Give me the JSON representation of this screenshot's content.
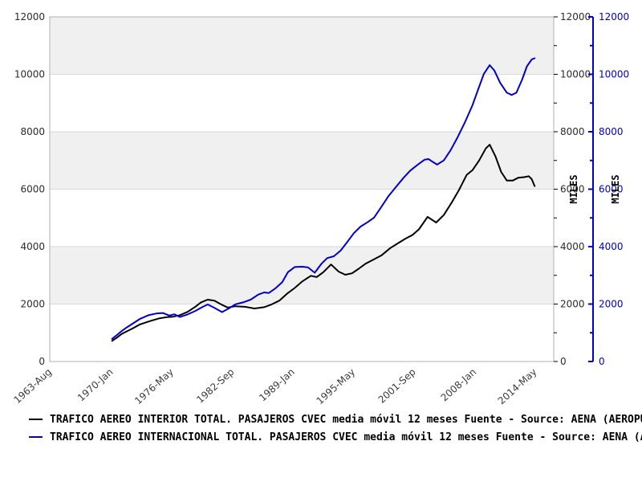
{
  "chart_data": {
    "type": "line",
    "title": "",
    "x_axis": {
      "tick_labels": [
        "1963-Aug",
        "1970-Jan",
        "1976-May",
        "1982-Sep",
        "1989-Jan",
        "1995-May",
        "2001-Sep",
        "2008-Jan",
        "2014-May"
      ],
      "tick_years": [
        1963.58,
        1970.0,
        1976.33,
        1982.67,
        1989.0,
        1995.33,
        2001.67,
        2008.0,
        2014.33
      ],
      "range_years": [
        1963.58,
        2016.3
      ],
      "grid": false
    },
    "y_axis": {
      "label_left": "",
      "label_right": "MILES",
      "label_right2": "MILES",
      "range": [
        0,
        12000
      ],
      "major_step": 2000,
      "minor_step": 1000,
      "tick_labels": [
        "0",
        "2000",
        "4000",
        "6000",
        "8000",
        "10000",
        "12000"
      ],
      "band_fill": "#f0f0f0",
      "band_pairs": [
        [
          2000,
          4000
        ],
        [
          6000,
          8000
        ],
        [
          10000,
          12000
        ]
      ],
      "grid_color": "#d9d9d9",
      "frame_color": "#b0b0b0",
      "right_axis2_color": "#0000cc"
    },
    "legend_position": "bottom-left",
    "series": [
      {
        "name": "TRAFICO AEREO INTERIOR TOTAL. PASAJEROS CVEC media móvil 12 meses  Fuente - Source: AENA (AEROPUERTOS ESPAÑ",
        "color": "#000000",
        "points": [
          [
            1970.1,
            720
          ],
          [
            1970.6,
            830
          ],
          [
            1971.1,
            960
          ],
          [
            1971.7,
            1060
          ],
          [
            1972.3,
            1160
          ],
          [
            1973,
            1290
          ],
          [
            1974,
            1400
          ],
          [
            1975,
            1500
          ],
          [
            1975.8,
            1545
          ],
          [
            1976.5,
            1560
          ],
          [
            1977.2,
            1615
          ],
          [
            1978,
            1730
          ],
          [
            1978.8,
            1905
          ],
          [
            1979.4,
            2060
          ],
          [
            1980.1,
            2155
          ],
          [
            1980.8,
            2120
          ],
          [
            1981.5,
            1990
          ],
          [
            1982.2,
            1880
          ],
          [
            1983,
            1925
          ],
          [
            1984,
            1905
          ],
          [
            1985,
            1845
          ],
          [
            1986,
            1890
          ],
          [
            1986.8,
            1990
          ],
          [
            1987.6,
            2120
          ],
          [
            1988.4,
            2360
          ],
          [
            1989.2,
            2560
          ],
          [
            1990,
            2790
          ],
          [
            1990.9,
            2985
          ],
          [
            1991.5,
            2940
          ],
          [
            1992.2,
            3110
          ],
          [
            1993,
            3380
          ],
          [
            1993.8,
            3130
          ],
          [
            1994.5,
            3020
          ],
          [
            1995.2,
            3070
          ],
          [
            1995.9,
            3230
          ],
          [
            1996.6,
            3400
          ],
          [
            1997.5,
            3560
          ],
          [
            1998.3,
            3700
          ],
          [
            1999.2,
            3950
          ],
          [
            2000,
            4115
          ],
          [
            2000.8,
            4280
          ],
          [
            2001.5,
            4400
          ],
          [
            2002.2,
            4600
          ],
          [
            2003.1,
            5035
          ],
          [
            2003.6,
            4930
          ],
          [
            2004,
            4840
          ],
          [
            2004.8,
            5100
          ],
          [
            2005.6,
            5520
          ],
          [
            2006.4,
            5980
          ],
          [
            2007.2,
            6500
          ],
          [
            2007.8,
            6660
          ],
          [
            2008.5,
            7000
          ],
          [
            2009.2,
            7420
          ],
          [
            2009.6,
            7550
          ],
          [
            2010.2,
            7150
          ],
          [
            2010.8,
            6600
          ],
          [
            2011.4,
            6300
          ],
          [
            2012,
            6300
          ],
          [
            2012.6,
            6400
          ],
          [
            2013.2,
            6420
          ],
          [
            2013.7,
            6450
          ],
          [
            2014,
            6350
          ],
          [
            2014.3,
            6110
          ]
        ]
      },
      {
        "name": "TRAFICO AEREO INTERNACIONAL TOTAL. PASAJEROS CVEC media móvil 12 meses  Fuente - Source: AENA (AEROPUERTOS",
        "color": "#0000cc",
        "points": [
          [
            1970.1,
            790
          ],
          [
            1970.6,
            920
          ],
          [
            1971.1,
            1060
          ],
          [
            1971.7,
            1200
          ],
          [
            1972.3,
            1330
          ],
          [
            1973,
            1480
          ],
          [
            1973.9,
            1610
          ],
          [
            1974.7,
            1670
          ],
          [
            1975.4,
            1690
          ],
          [
            1976.1,
            1600
          ],
          [
            1976.6,
            1645
          ],
          [
            1977.2,
            1550
          ],
          [
            1978,
            1640
          ],
          [
            1978.8,
            1760
          ],
          [
            1979.6,
            1905
          ],
          [
            1980.1,
            1985
          ],
          [
            1980.8,
            1870
          ],
          [
            1981.6,
            1720
          ],
          [
            1982.3,
            1845
          ],
          [
            1983,
            1990
          ],
          [
            1983.8,
            2060
          ],
          [
            1984.6,
            2155
          ],
          [
            1985.4,
            2330
          ],
          [
            1986,
            2405
          ],
          [
            1986.5,
            2385
          ],
          [
            1987.2,
            2550
          ],
          [
            1987.9,
            2760
          ],
          [
            1988.5,
            3110
          ],
          [
            1989.2,
            3290
          ],
          [
            1990,
            3300
          ],
          [
            1990.6,
            3275
          ],
          [
            1991.3,
            3090
          ],
          [
            1992,
            3400
          ],
          [
            1992.6,
            3600
          ],
          [
            1993.3,
            3665
          ],
          [
            1994,
            3860
          ],
          [
            1994.7,
            4160
          ],
          [
            1995.4,
            4470
          ],
          [
            1996.1,
            4700
          ],
          [
            1996.8,
            4845
          ],
          [
            1997.5,
            5010
          ],
          [
            1998.3,
            5400
          ],
          [
            1999,
            5750
          ],
          [
            1999.8,
            6080
          ],
          [
            2000.6,
            6400
          ],
          [
            2001.3,
            6650
          ],
          [
            2002.1,
            6860
          ],
          [
            2002.8,
            7030
          ],
          [
            2003.2,
            7050
          ],
          [
            2003.7,
            6940
          ],
          [
            2004.1,
            6855
          ],
          [
            2004.8,
            7000
          ],
          [
            2005.5,
            7350
          ],
          [
            2006.2,
            7780
          ],
          [
            2007,
            8320
          ],
          [
            2007.8,
            8920
          ],
          [
            2008.4,
            9480
          ],
          [
            2009,
            10020
          ],
          [
            2009.6,
            10320
          ],
          [
            2010.1,
            10130
          ],
          [
            2010.7,
            9700
          ],
          [
            2011.4,
            9360
          ],
          [
            2011.9,
            9280
          ],
          [
            2012.4,
            9360
          ],
          [
            2013,
            9820
          ],
          [
            2013.5,
            10280
          ],
          [
            2014,
            10520
          ],
          [
            2014.3,
            10560
          ]
        ]
      }
    ]
  },
  "legend": {
    "items": [
      {
        "label": "TRAFICO AEREO INTERIOR TOTAL. PASAJEROS CVEC media móvil 12 meses  Fuente - Source: AENA (AEROPUERTOS ESPAÑ",
        "color": "#000000"
      },
      {
        "label": "TRAFICO AEREO INTERNACIONAL TOTAL. PASAJEROS CVEC media móvil 12 meses  Fuente - Source: AENA (AEROPUERTOS",
        "color": "#0000cc"
      }
    ]
  }
}
